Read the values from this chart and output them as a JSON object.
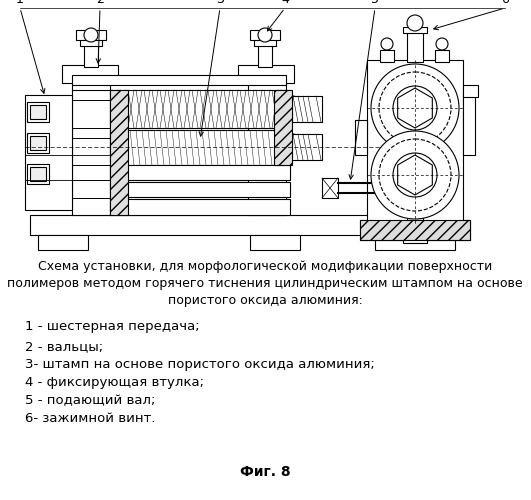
{
  "title": "Фиг. 8",
  "background_color": "#ffffff",
  "description_lines": [
    "Схема установки, для морфологической модификации поверхности",
    "полимеров методом горячего тиснения цилиндрическим штампом на основе",
    "пористого оксида алюминия:"
  ],
  "legend_items": [
    "1 - шестерная передача;",
    "2 - вальцы;",
    "3- штамп на основе пористого оксида алюминия;",
    "4 - фиксирующая втулка;",
    "5 - подающий вал;",
    "6- зажимной винт."
  ],
  "figsize": [
    5.31,
    5.0
  ],
  "dpi": 100
}
